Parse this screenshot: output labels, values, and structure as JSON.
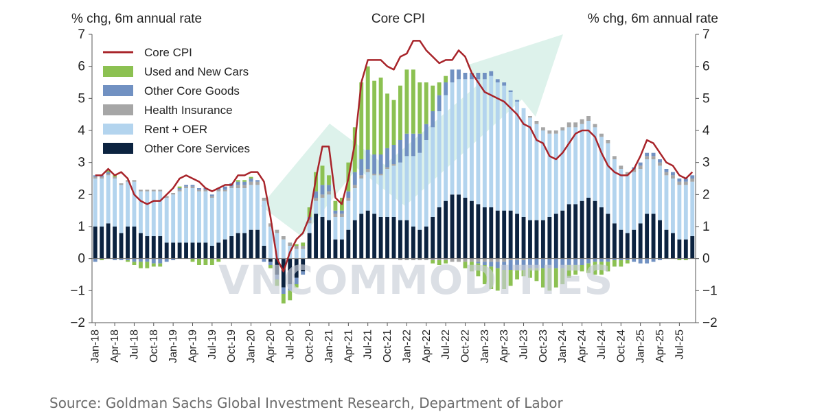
{
  "chart_data": {
    "type": "bar",
    "title": "Core CPI",
    "ylabel_left": "% chg, 6m annual rate",
    "ylabel_right": "% chg, 6m annual rate",
    "ylim": [
      -2,
      7
    ],
    "yticks": [
      -2,
      -1,
      0,
      1,
      2,
      3,
      4,
      5,
      6,
      7
    ],
    "stacked": true,
    "x_tick_labels": [
      "Jan-18",
      "Apr-18",
      "Jul-18",
      "Oct-18",
      "Jan-19",
      "Apr-19",
      "Jul-19",
      "Oct-19",
      "Jan-20",
      "Apr-20",
      "Jul-20",
      "Oct-20",
      "Jan-21",
      "Apr-21",
      "Jul-21",
      "Oct-21",
      "Jan-22",
      "Apr-22",
      "Jul-22",
      "Oct-22",
      "Jan-23",
      "Apr-23",
      "Jul-23",
      "Oct-23",
      "Jan-24",
      "Apr-24",
      "Jul-24",
      "Oct-24",
      "Jan-25",
      "Apr-25",
      "Jul-25"
    ],
    "legend_position": "top-left",
    "series": [
      {
        "name": "Core CPI",
        "kind": "line",
        "color": "#a8242a",
        "values": [
          2.6,
          2.6,
          2.8,
          2.6,
          2.7,
          2.5,
          2.0,
          1.8,
          1.7,
          1.8,
          1.8,
          2.0,
          2.2,
          2.5,
          2.6,
          2.5,
          2.4,
          2.2,
          2.1,
          2.2,
          2.3,
          2.3,
          2.6,
          2.6,
          2.7,
          2.7,
          2.4,
          1.3,
          0.0,
          -0.4,
          0.2,
          0.6,
          0.8,
          1.3,
          2.5,
          3.5,
          3.5,
          1.9,
          1.7,
          2.5,
          3.6,
          5.5,
          6.2,
          6.2,
          6.2,
          6.0,
          5.9,
          6.3,
          6.4,
          6.8,
          6.8,
          6.5,
          6.3,
          6.1,
          6.2,
          6.2,
          6.5,
          6.3,
          5.8,
          5.5,
          5.2,
          5.1,
          5.0,
          4.9,
          4.7,
          4.5,
          4.2,
          4.1,
          3.7,
          3.6,
          3.2,
          3.1,
          3.3,
          3.6,
          3.9,
          4.0,
          4.0,
          3.8,
          3.3,
          2.9,
          2.7,
          2.6,
          2.6,
          2.8,
          3.2,
          3.7,
          3.6,
          3.3,
          3.0,
          2.9,
          2.6,
          2.5,
          2.7
        ]
      },
      {
        "name": "Used and New Cars",
        "kind": "bar",
        "color": "#8cc152",
        "pos_values": [
          0.0,
          0.0,
          0.05,
          0.05,
          0.0,
          0.0,
          0.0,
          0.0,
          0.0,
          0.0,
          0.0,
          0.0,
          0.0,
          0.05,
          0.0,
          0.0,
          0.0,
          0.0,
          0.0,
          0.0,
          0.0,
          0.0,
          0.05,
          0.05,
          0.05,
          0.0,
          0.0,
          0.0,
          0.0,
          0.0,
          0.0,
          0.05,
          0.1,
          0.3,
          0.6,
          0.6,
          0.3,
          0.3,
          0.4,
          0.9,
          1.4,
          2.4,
          2.6,
          2.3,
          2.4,
          1.7,
          1.4,
          1.7,
          2.0,
          2.0,
          1.6,
          1.3,
          0.8,
          0.4,
          0.2,
          0.0,
          0.0,
          0.0,
          0.0,
          0.0,
          0.0,
          0.0,
          0.0,
          0.0,
          0.0,
          0.0,
          0.0,
          0.0,
          0.0,
          0.0,
          0.0,
          0.0,
          0.0,
          0.0,
          0.0,
          0.0,
          0.0,
          0.0,
          0.0,
          0.0,
          0.0,
          0.0,
          0.0,
          0.0,
          0.0,
          0.0,
          0.0,
          0.0,
          0.0,
          0.0,
          0.0,
          0.0,
          0.0
        ],
        "neg_values": [
          0,
          -0.05,
          0,
          0,
          0,
          -0.05,
          -0.1,
          -0.2,
          -0.2,
          -0.1,
          -0.1,
          0,
          0,
          0,
          0,
          -0.1,
          -0.2,
          -0.2,
          -0.2,
          -0.1,
          0,
          0,
          0,
          0,
          0,
          0,
          0,
          -0.1,
          -0.2,
          -0.3,
          -0.3,
          -0.1,
          0,
          0,
          0,
          0,
          0,
          0,
          0,
          0,
          0,
          0,
          0,
          0,
          0,
          0,
          0,
          0,
          0,
          0,
          0,
          0,
          -0.1,
          -0.15,
          -0.1,
          0,
          0,
          -0.2,
          -0.3,
          -0.4,
          -0.6,
          -0.7,
          -0.7,
          -0.6,
          -0.5,
          -0.3,
          -0.2,
          -0.3,
          -0.4,
          -0.6,
          -0.7,
          -0.6,
          -0.5,
          -0.4,
          -0.3,
          -0.2,
          -0.3,
          -0.4,
          -0.4,
          -0.3,
          -0.2,
          -0.2,
          -0.1,
          0,
          0,
          0,
          0,
          0,
          0,
          0,
          -0.05,
          -0.05,
          0
        ]
      },
      {
        "name": "Other Core Goods",
        "kind": "bar",
        "color": "#7191c2",
        "pos_values": [
          0.05,
          0.05,
          0.05,
          0.0,
          0.0,
          0.0,
          0.0,
          0.0,
          0.0,
          0.0,
          0.0,
          0.0,
          0.0,
          0.05,
          0.05,
          0.05,
          0.05,
          0.05,
          0.05,
          0.05,
          0.1,
          0.1,
          0.1,
          0.1,
          0.1,
          0.05,
          0.0,
          0.0,
          0.0,
          0.0,
          0.0,
          0.0,
          0.0,
          0.1,
          0.2,
          0.3,
          0.2,
          0.1,
          0.1,
          0.2,
          0.4,
          0.5,
          0.6,
          0.6,
          0.6,
          0.6,
          0.6,
          0.7,
          0.7,
          0.7,
          0.6,
          0.5,
          0.5,
          0.5,
          0.4,
          0.4,
          0.3,
          0.2,
          0.2,
          0.2,
          0.2,
          0.15,
          0.1,
          0.1,
          0.05,
          0.05,
          0.0,
          0.0,
          0.0,
          0.0,
          0.0,
          0.0,
          0.0,
          0.0,
          0.0,
          0.0,
          0.0,
          0.0,
          0.0,
          0.0,
          0.0,
          0.0,
          0.0,
          0.05,
          0.1,
          0.1,
          0.1,
          0.1,
          0.1,
          0.1,
          0.1,
          0.1,
          0.1
        ],
        "neg_values": [
          -0.1,
          0,
          0,
          -0.05,
          -0.05,
          -0.05,
          -0.1,
          -0.1,
          -0.1,
          -0.15,
          -0.15,
          -0.1,
          -0.05,
          0,
          0,
          0,
          0,
          0,
          0,
          0,
          0,
          0,
          0,
          0,
          0,
          0,
          -0.1,
          -0.1,
          -0.15,
          -0.2,
          -0.2,
          -0.2,
          -0.1,
          0,
          0,
          0,
          0,
          0,
          0,
          0,
          0,
          0,
          0,
          0,
          0,
          0,
          0,
          0,
          0,
          0,
          0,
          0,
          0,
          0,
          0,
          0,
          0,
          0,
          0,
          -0.05,
          -0.1,
          -0.15,
          -0.2,
          -0.25,
          -0.3,
          -0.3,
          -0.3,
          -0.3,
          -0.3,
          -0.3,
          -0.3,
          -0.3,
          -0.3,
          -0.2,
          -0.2,
          -0.2,
          -0.15,
          -0.1,
          -0.1,
          -0.1,
          -0.05,
          -0.05,
          -0.05,
          -0.1,
          -0.15,
          -0.15,
          -0.1,
          -0.05,
          0,
          0,
          0,
          0,
          0
        ]
      },
      {
        "name": "Health Insurance",
        "kind": "bar",
        "color": "#a6a6a6",
        "pos_values": [
          0.05,
          0.05,
          0.05,
          0.05,
          0.05,
          0.05,
          0.05,
          0.05,
          0.05,
          0.05,
          0.05,
          0.05,
          0.05,
          0.05,
          0.05,
          0.05,
          0.05,
          0.05,
          0.05,
          0.05,
          0.05,
          0.05,
          0.1,
          0.1,
          0.1,
          0.1,
          0.1,
          0.1,
          0.1,
          0.1,
          0.1,
          0.1,
          0.1,
          0.1,
          0.1,
          0.1,
          0.1,
          0.1,
          0.1,
          0.1,
          0.1,
          0.1,
          0.1,
          0.05,
          0.05,
          0.05,
          0.05,
          0.0,
          0.0,
          0.0,
          0.0,
          0.0,
          0.0,
          0.0,
          0.0,
          0.0,
          0.0,
          0.0,
          0.0,
          0.0,
          0.0,
          0.0,
          0.0,
          0.0,
          0.0,
          0.0,
          0.0,
          0.05,
          0.1,
          0.1,
          0.1,
          0.1,
          0.1,
          0.15,
          0.15,
          0.15,
          0.15,
          0.1,
          0.1,
          0.1,
          0.1,
          0.1,
          0.1,
          0.1,
          0.1,
          0.1,
          0.1,
          0.1,
          0.1,
          0.1,
          0.1,
          0.1,
          0.1
        ],
        "neg_values": [
          0,
          0,
          0,
          0,
          0,
          0,
          0,
          0,
          0,
          0,
          0,
          0,
          0,
          0,
          0,
          0,
          0,
          0,
          0,
          0,
          0,
          0,
          0,
          0,
          0,
          0,
          0,
          0,
          0,
          0,
          0,
          0,
          0,
          0,
          0,
          0,
          0,
          0,
          0,
          0,
          0,
          0,
          0,
          0,
          0,
          0,
          0,
          -0.05,
          -0.05,
          -0.05,
          -0.05,
          -0.05,
          -0.05,
          -0.05,
          -0.05,
          -0.1,
          -0.1,
          -0.1,
          -0.1,
          -0.1,
          -0.1,
          -0.1,
          -0.1,
          -0.1,
          -0.05,
          -0.05,
          -0.05,
          0,
          0,
          0,
          0,
          0,
          0,
          0,
          0,
          0,
          0,
          0,
          0,
          0,
          0,
          0,
          0,
          0,
          0,
          0,
          0,
          0,
          0,
          0,
          0,
          0,
          0
        ]
      },
      {
        "name": "Rent + OER",
        "kind": "bar",
        "color": "#b3d4ee",
        "pos_values": [
          1.5,
          1.5,
          1.5,
          1.5,
          1.5,
          1.4,
          1.4,
          1.3,
          1.4,
          1.4,
          1.4,
          1.4,
          1.5,
          1.6,
          1.7,
          1.7,
          1.6,
          1.6,
          1.5,
          1.6,
          1.5,
          1.5,
          1.4,
          1.4,
          1.4,
          1.4,
          1.4,
          1.0,
          0.8,
          0.6,
          0.4,
          0.3,
          0.3,
          0.3,
          0.4,
          0.6,
          0.8,
          0.7,
          0.7,
          0.9,
          1.0,
          1.1,
          1.2,
          1.2,
          1.3,
          1.5,
          1.6,
          1.8,
          2.0,
          2.2,
          2.4,
          2.7,
          2.8,
          3.0,
          3.3,
          3.5,
          3.6,
          3.7,
          3.8,
          3.9,
          4.0,
          4.1,
          4.0,
          3.9,
          3.7,
          3.5,
          3.4,
          3.2,
          3.0,
          2.8,
          2.6,
          2.5,
          2.5,
          2.4,
          2.4,
          2.4,
          2.4,
          2.3,
          2.2,
          2.2,
          2.0,
          1.9,
          1.8,
          1.8,
          1.7,
          1.7,
          1.7,
          1.7,
          1.7,
          1.7,
          1.7,
          1.7,
          1.7
        ],
        "neg_values": [
          0,
          0,
          0,
          0,
          0,
          0,
          0,
          0,
          0,
          0,
          0,
          0,
          0,
          0,
          0,
          0,
          0,
          0,
          0,
          0,
          0,
          0,
          0,
          0,
          0,
          0,
          0,
          0,
          0,
          0,
          0,
          0,
          0,
          0,
          0,
          0,
          0,
          0,
          0,
          0,
          0,
          0,
          0,
          0,
          0,
          0,
          0,
          0,
          0,
          0,
          0,
          0,
          0,
          0,
          0,
          0,
          0,
          0,
          0,
          0,
          0,
          0,
          0,
          0,
          0,
          0,
          0,
          0,
          0,
          0,
          0,
          0,
          0,
          0,
          0,
          0,
          0,
          0,
          0,
          0,
          0,
          0,
          0,
          0,
          0,
          0,
          0,
          0,
          0,
          0,
          0,
          0,
          0
        ]
      },
      {
        "name": "Other Core Services",
        "kind": "bar",
        "color": "#0c2340",
        "pos_values": [
          1.0,
          1.0,
          1.1,
          1.0,
          0.8,
          1.0,
          1.0,
          0.8,
          0.7,
          0.7,
          0.7,
          0.5,
          0.5,
          0.5,
          0.5,
          0.5,
          0.5,
          0.5,
          0.4,
          0.5,
          0.6,
          0.7,
          0.8,
          0.8,
          0.9,
          0.9,
          0.4,
          0.0,
          0.0,
          0.0,
          0.0,
          0.0,
          0.0,
          0.8,
          1.4,
          1.3,
          1.2,
          0.6,
          0.6,
          0.9,
          1.2,
          1.4,
          1.5,
          1.4,
          1.3,
          1.3,
          1.3,
          1.2,
          1.2,
          1.0,
          0.9,
          1.0,
          1.3,
          1.6,
          1.8,
          2.0,
          2.0,
          1.9,
          1.8,
          1.7,
          1.6,
          1.6,
          1.5,
          1.5,
          1.5,
          1.4,
          1.3,
          1.2,
          1.2,
          1.2,
          1.3,
          1.4,
          1.5,
          1.7,
          1.7,
          1.8,
          1.9,
          1.8,
          1.6,
          1.4,
          1.1,
          0.9,
          0.8,
          0.9,
          1.1,
          1.4,
          1.4,
          1.2,
          0.9,
          0.8,
          0.6,
          0.6,
          0.7
        ],
        "neg_values": [
          0,
          0,
          0,
          0,
          0,
          0,
          0,
          0,
          0,
          0,
          0,
          0,
          0,
          0,
          0,
          0,
          0,
          0,
          0,
          0,
          0,
          0,
          0,
          0,
          0,
          0,
          0,
          -0.1,
          -0.5,
          -0.9,
          -0.8,
          -0.6,
          -0.4,
          0,
          0,
          0,
          0,
          0,
          0,
          0,
          0,
          0,
          0,
          0,
          0,
          0,
          0,
          0,
          0,
          0,
          0,
          0,
          0,
          0,
          0,
          0,
          0,
          0,
          0,
          0,
          0,
          0,
          0,
          0,
          0,
          0,
          0,
          0,
          0,
          0,
          0,
          0,
          0,
          0,
          0,
          0,
          0,
          0,
          0,
          0,
          0,
          0,
          0,
          0,
          0,
          0,
          0,
          0,
          0,
          0,
          0,
          0,
          0
        ]
      }
    ],
    "source": "Source: Goldman Sachs Global Investment Research, Department of Labor",
    "watermark": "VNCOMMODITIES"
  }
}
